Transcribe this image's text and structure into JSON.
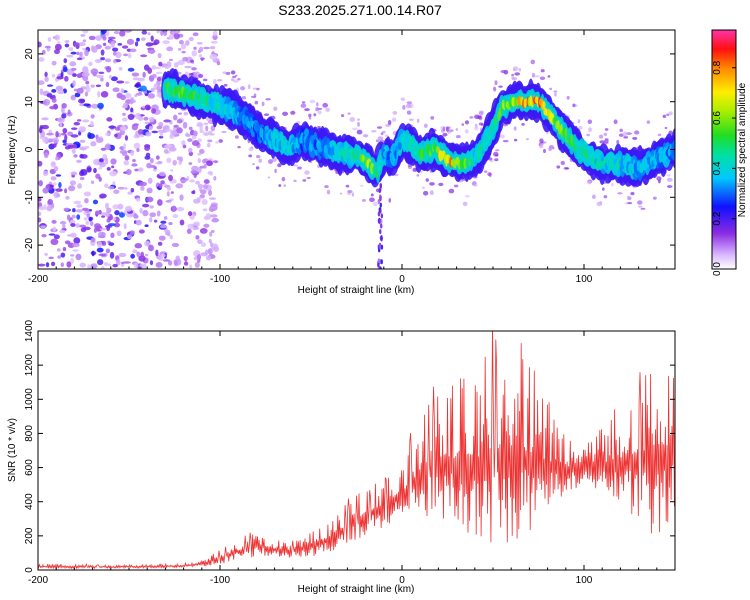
{
  "title": "S233.2025.271.00.14.R07",
  "chart_data": [
    {
      "type": "heatmap",
      "id": "spectrogram",
      "xlabel": "Height of straight line (km)",
      "ylabel": "Frequency (Hz)",
      "xlim": [
        -200,
        150
      ],
      "ylim": [
        -25,
        25
      ],
      "xticks": [
        -200,
        -100,
        0,
        100
      ],
      "yticks": [
        -20,
        -10,
        0,
        10,
        20
      ],
      "colorbar": {
        "label": "Normalized spectral amplitude",
        "range": [
          0,
          0.95
        ],
        "ticks": [
          0.0,
          0.2,
          0.4,
          0.6,
          0.8
        ],
        "tick_labels": [
          "0.0",
          "0.2",
          "0.4",
          "0.6",
          "0.8"
        ]
      },
      "ridge": {
        "x": [
          -130,
          -122,
          -115,
          -108,
          -100,
          -92,
          -85,
          -78,
          -70,
          -62,
          -55,
          -48,
          -40,
          -32,
          -25,
          -18,
          -14,
          -10,
          -5,
          0,
          5,
          10,
          18,
          25,
          32,
          40,
          48,
          55,
          62,
          68,
          75,
          82,
          90,
          100,
          110,
          120,
          130,
          140,
          150
        ],
        "y": [
          13,
          12,
          11,
          10,
          9,
          8,
          6,
          3.5,
          2,
          0,
          2,
          1,
          0,
          -1,
          -1,
          -3,
          -5,
          -1,
          -2,
          2,
          1,
          -1,
          0,
          -2,
          -3,
          -2,
          3,
          9,
          10,
          10,
          10,
          7,
          3,
          -1,
          -3,
          -3,
          -4,
          -2,
          0
        ],
        "peak_amplitude": [
          0.55,
          0.6,
          0.55,
          0.5,
          0.45,
          0.4,
          0.35,
          0.35,
          0.4,
          0.45,
          0.35,
          0.35,
          0.4,
          0.45,
          0.5,
          0.7,
          0.55,
          0.4,
          0.35,
          0.45,
          0.5,
          0.55,
          0.65,
          0.9,
          0.7,
          0.45,
          0.5,
          0.6,
          0.75,
          0.9,
          0.85,
          0.7,
          0.6,
          0.5,
          0.45,
          0.45,
          0.4,
          0.4,
          0.35
        ]
      },
      "noise_region_x": [
        -200,
        -110
      ]
    },
    {
      "type": "line",
      "id": "snr",
      "xlabel": "Height of straight line (km)",
      "ylabel": "SNR (10 * v/v)",
      "xlim": [
        -200,
        150
      ],
      "ylim": [
        0,
        1400
      ],
      "xticks": [
        -200,
        -100,
        0,
        100
      ],
      "yticks": [
        0,
        200,
        400,
        600,
        800,
        1000,
        1200,
        1400
      ],
      "series": [
        {
          "name": "SNR",
          "color": "#ee3333",
          "x": [
            -200,
            -180,
            -160,
            -140,
            -120,
            -110,
            -100,
            -90,
            -80,
            -70,
            -60,
            -50,
            -40,
            -30,
            -20,
            -10,
            0,
            10,
            20,
            30,
            40,
            50,
            60,
            70,
            80,
            90,
            100,
            110,
            120,
            130,
            140,
            150
          ],
          "envelope_low": [
            10,
            10,
            10,
            12,
            15,
            20,
            30,
            60,
            80,
            80,
            70,
            80,
            100,
            150,
            200,
            250,
            300,
            320,
            300,
            250,
            200,
            150,
            150,
            200,
            350,
            450,
            500,
            450,
            350,
            250,
            200,
            250
          ],
          "envelope_high": [
            35,
            35,
            30,
            35,
            40,
            60,
            130,
            180,
            250,
            180,
            170,
            220,
            300,
            400,
            500,
            550,
            650,
            900,
            1100,
            1150,
            1200,
            1400,
            1400,
            1300,
            1000,
            800,
            750,
            850,
            1000,
            1200,
            1400,
            1300
          ]
        }
      ]
    }
  ]
}
